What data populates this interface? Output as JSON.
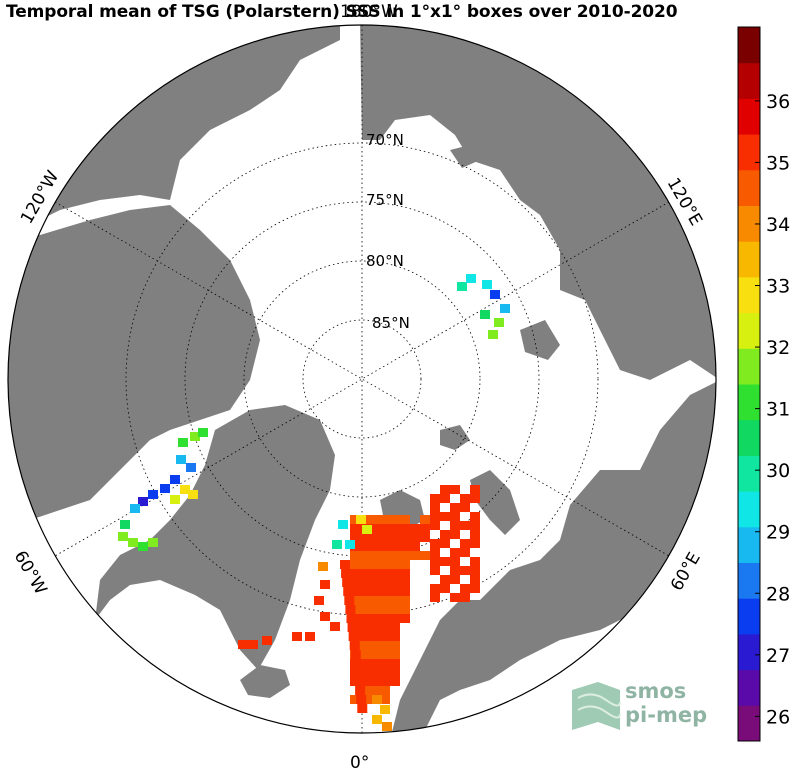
{
  "title": "Temporal mean of TSG (Polarstern) SSS in 1°x1° boxes over 2010-2020",
  "meridian_labels": {
    "top": "180°W",
    "bottom": "0°",
    "left_upper": "120°W",
    "left_lower": "60°W",
    "right_upper": "120°E",
    "right_lower": "60°E"
  },
  "latitude_labels": [
    "70°N",
    "75°N",
    "80°N",
    "85°N"
  ],
  "colorbar": {
    "min": 25.6,
    "max": 37.2,
    "ticks": [
      "26",
      "27",
      "28",
      "29",
      "30",
      "31",
      "32",
      "33",
      "34",
      "35",
      "36"
    ],
    "tick_values": [
      26,
      27,
      28,
      29,
      30,
      31,
      32,
      33,
      34,
      35,
      36
    ],
    "colors": [
      "#7a0c7a",
      "#5a0aa8",
      "#2a1ad2",
      "#0a3cf0",
      "#1a78f0",
      "#18b8f0",
      "#10e6e6",
      "#10e6a0",
      "#10d860",
      "#30e030",
      "#80ec20",
      "#d8f010",
      "#f8e010",
      "#f8b800",
      "#f88a00",
      "#f85a00",
      "#f82e00",
      "#e00000",
      "#b40000",
      "#7a0000"
    ],
    "color_order": "low to high"
  },
  "logo": {
    "line1": "smos",
    "line2": "pi-mep"
  },
  "colors": {
    "land": "#808080",
    "ocean": "#ffffff",
    "grid": "#000000"
  }
}
